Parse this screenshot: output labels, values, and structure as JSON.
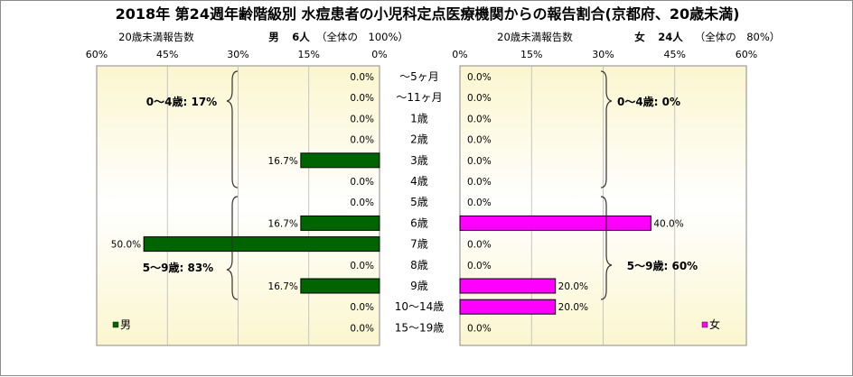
{
  "title": "2018年 第24週年齢階級別 水痘患者の小児科定点医療機関からの報告割合(京都府、20歳未満)",
  "left_header": {
    "ratio_label": "20歳未満報告数",
    "sex": "男",
    "count": "6人",
    "share": "（全体の　100%）"
  },
  "right_header": {
    "ratio_label": "20歳未満報告数",
    "sex": "女",
    "count": "24人",
    "share": "（全体の　80%）"
  },
  "colors": {
    "male": "#006400",
    "female": "#ff00ff",
    "plot_bg_top": "#fbf6cf",
    "plot_bg_mid": "#ffffff"
  },
  "chart_data": [
    {
      "type": "bar",
      "name": "男",
      "orientation": "horizontal",
      "x_direction": "reversed",
      "xlim": [
        0,
        60
      ],
      "xticks": [
        "60%",
        "45%",
        "30%",
        "15%",
        "0%"
      ],
      "categories": [
        "～5ヶ月",
        "～11ヶ月",
        "1歳",
        "2歳",
        "3歳",
        "4歳",
        "5歳",
        "6歳",
        "7歳",
        "8歳",
        "9歳",
        "10～14歳",
        "15～19歳"
      ],
      "values": [
        0,
        0,
        0,
        0,
        16.7,
        0,
        0,
        16.7,
        50,
        0,
        16.7,
        0,
        0
      ],
      "data_labels": [
        "0.0%",
        "0.0%",
        "0.0%",
        "0.0%",
        "16.7%",
        "0.0%",
        "0.0%",
        "16.7%",
        "50.0%",
        "0.0%",
        "16.7%",
        "0.0%",
        "0.0%"
      ],
      "annotations": [
        "0～4歳: 17%",
        "5～9歳: 83%"
      ],
      "legend": "男",
      "grid": true
    },
    {
      "type": "bar",
      "name": "女",
      "orientation": "horizontal",
      "xlim": [
        0,
        60
      ],
      "xticks": [
        "0%",
        "15%",
        "30%",
        "45%",
        "60%"
      ],
      "categories": [
        "～5ヶ月",
        "～11ヶ月",
        "1歳",
        "2歳",
        "3歳",
        "4歳",
        "5歳",
        "6歳",
        "7歳",
        "8歳",
        "9歳",
        "10～14歳",
        "15～19歳"
      ],
      "values": [
        0,
        0,
        0,
        0,
        0,
        0,
        0,
        40,
        0,
        0,
        20,
        20,
        0
      ],
      "data_labels": [
        "0.0%",
        "0.0%",
        "0.0%",
        "0.0%",
        "0.0%",
        "0.0%",
        "0.0%",
        "40.0%",
        "0.0%",
        "0.0%",
        "20.0%",
        "20.0%",
        "0.0%"
      ],
      "annotations": [
        "0～4歳: 0%",
        "5～9歳: 60%"
      ],
      "legend": "女",
      "grid": true
    }
  ]
}
